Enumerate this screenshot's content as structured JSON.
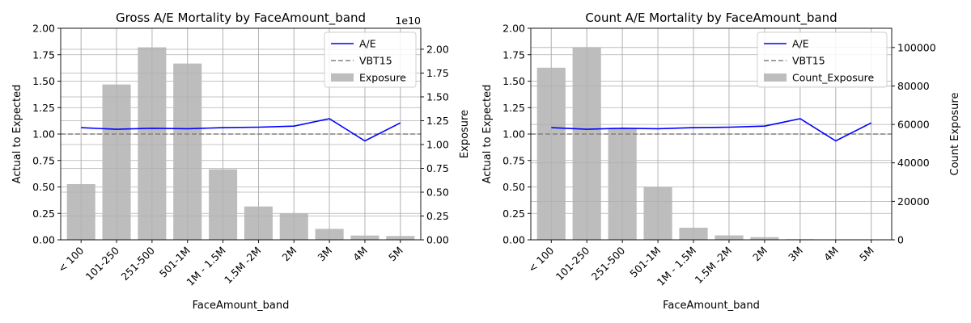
{
  "chart_data": [
    {
      "type": "bar",
      "title": "Gross A/E Mortality by FaceAmount_band",
      "xlabel": "FaceAmount_band",
      "ylabel": "Actual to Expected",
      "y2label": "Exposure",
      "y2_offset_text": "1e10",
      "categories": [
        "< 100",
        "101-250",
        "251-500",
        "501-1M",
        "1M - 1.5M",
        "1.5M -2M",
        "2M",
        "3M",
        "4M",
        "5M"
      ],
      "ylim": [
        0,
        2.0
      ],
      "y_ticks": [
        "0.00",
        "0.25",
        "0.50",
        "0.75",
        "1.00",
        "1.25",
        "1.50",
        "1.75",
        "2.00"
      ],
      "y2lim": [
        0,
        2.22
      ],
      "y2_ticks": [
        "0.00",
        "0.25",
        "0.50",
        "0.75",
        "1.00",
        "1.25",
        "1.50",
        "1.75",
        "2.00"
      ],
      "grid": true,
      "legend_position": "top-right",
      "series": [
        {
          "name": "A/E",
          "kind": "line",
          "axis": "left",
          "color": "#0000ff",
          "values": [
            1.06,
            1.045,
            1.055,
            1.05,
            1.06,
            1.065,
            1.075,
            1.145,
            0.935,
            1.105
          ]
        },
        {
          "name": "VBT15",
          "kind": "hline",
          "axis": "left",
          "color": "#808080",
          "value": 1.0
        },
        {
          "name": "Exposure",
          "kind": "bar",
          "axis": "right",
          "color": "#bdbdbd",
          "values": [
            0.585,
            1.63,
            2.02,
            1.85,
            0.74,
            0.35,
            0.28,
            0.115,
            0.045,
            0.04
          ]
        }
      ]
    },
    {
      "type": "bar",
      "title": "Count A/E Mortality by FaceAmount_band",
      "xlabel": "FaceAmount_band",
      "ylabel": "Actual to Expected",
      "y2label": "Count Exposure",
      "y2_offset_text": "",
      "categories": [
        "< 100",
        "101-250",
        "251-500",
        "501-1M",
        "1M - 1.5M",
        "1.5M -2M",
        "2M",
        "3M",
        "4M",
        "5M"
      ],
      "ylim": [
        0,
        2.0
      ],
      "y_ticks": [
        "0.00",
        "0.25",
        "0.50",
        "0.75",
        "1.00",
        "1.25",
        "1.50",
        "1.75",
        "2.00"
      ],
      "y2lim": [
        0,
        110000
      ],
      "y2_ticks": [
        "0",
        "20000",
        "40000",
        "60000",
        "80000",
        "100000"
      ],
      "grid": true,
      "legend_position": "top-right",
      "series": [
        {
          "name": "A/E",
          "kind": "line",
          "axis": "left",
          "color": "#0000ff",
          "values": [
            1.06,
            1.045,
            1.055,
            1.05,
            1.06,
            1.065,
            1.075,
            1.145,
            0.935,
            1.105
          ]
        },
        {
          "name": "VBT15",
          "kind": "hline",
          "axis": "left",
          "color": "#808080",
          "value": 1.0
        },
        {
          "name": "Count_Exposure",
          "kind": "bar",
          "axis": "right",
          "color": "#bdbdbd",
          "values": [
            89500,
            100000,
            58000,
            27500,
            6300,
            2300,
            1400,
            300,
            100,
            80
          ]
        }
      ]
    }
  ]
}
